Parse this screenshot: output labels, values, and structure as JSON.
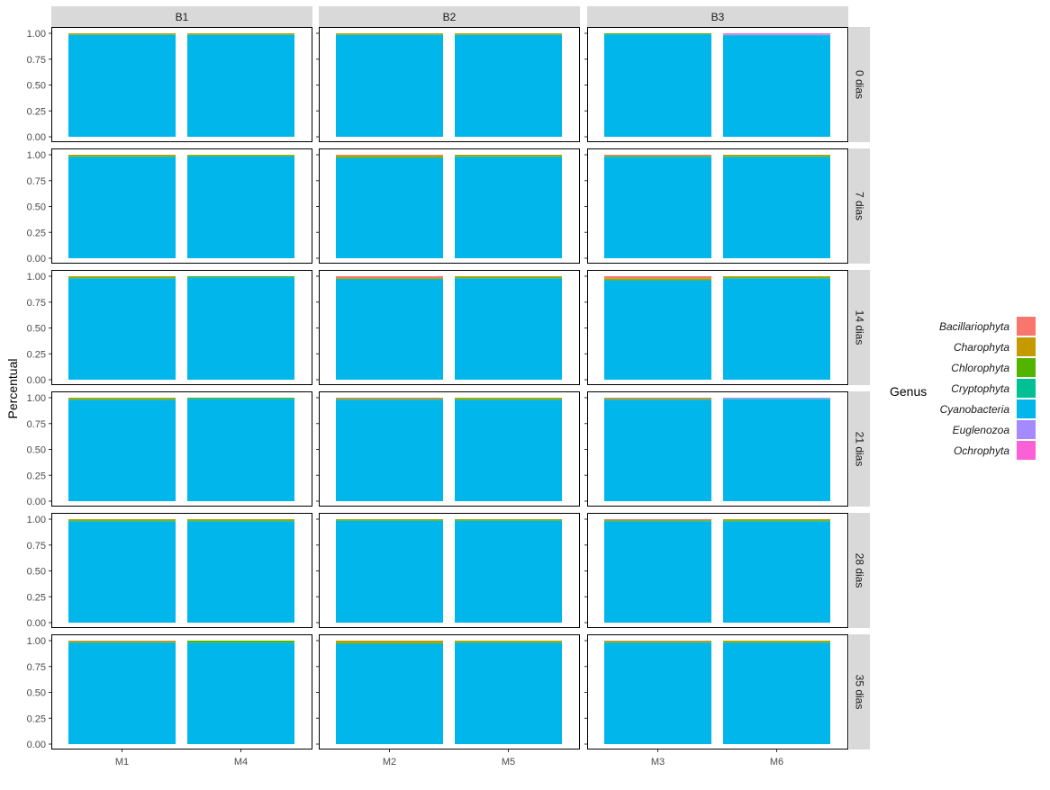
{
  "chart_data": {
    "type": "bar",
    "stacked": true,
    "ylabel": "Percentual",
    "xlabel": "",
    "ylim": [
      0,
      1
    ],
    "y_ticks": [
      0.0,
      0.25,
      0.5,
      0.75,
      1.0
    ],
    "y_tick_labels": [
      "0.00",
      "0.25",
      "0.50",
      "0.75",
      "1.00"
    ],
    "grid": false,
    "legend": {
      "title": "Genus",
      "placement": "right",
      "entries": [
        {
          "name": "Bacillariophyta",
          "color": "#F8766D"
        },
        {
          "name": "Charophyta",
          "color": "#C49A00"
        },
        {
          "name": "Chlorophyta",
          "color": "#53B400"
        },
        {
          "name": "Cryptophyta",
          "color": "#00C094"
        },
        {
          "name": "Cyanobacteria",
          "color": "#00B6EB"
        },
        {
          "name": "Euglenozoa",
          "color": "#A58AFF"
        },
        {
          "name": "Ochrophyta",
          "color": "#FB61D7"
        }
      ]
    },
    "facet_columns": [
      {
        "label": "B1",
        "categories": [
          "M1",
          "M4"
        ]
      },
      {
        "label": "B2",
        "categories": [
          "M2",
          "M5"
        ]
      },
      {
        "label": "B3",
        "categories": [
          "M3",
          "M6"
        ]
      }
    ],
    "facet_rows": [
      "0 dias",
      "7 dias",
      "14 dias",
      "21 dias",
      "28 dias",
      "35 dias"
    ],
    "bar_order": [
      "Cyanobacteria",
      "Cryptophyta",
      "Chlorophyta",
      "Charophyta",
      "Bacillariophyta",
      "Euglenozoa",
      "Ochrophyta"
    ],
    "panels": [
      {
        "row": "0 dias",
        "col": "B1",
        "bars": {
          "M1": {
            "Cyanobacteria": 0.985,
            "Charophyta": 0.01,
            "Chlorophyta": 0.005
          },
          "M4": {
            "Cyanobacteria": 0.985,
            "Charophyta": 0.01,
            "Chlorophyta": 0.005
          }
        }
      },
      {
        "row": "0 dias",
        "col": "B2",
        "bars": {
          "M2": {
            "Cyanobacteria": 0.985,
            "Charophyta": 0.01,
            "Chlorophyta": 0.005
          },
          "M5": {
            "Cyanobacteria": 0.985,
            "Charophyta": 0.01,
            "Chlorophyta": 0.005
          }
        }
      },
      {
        "row": "0 dias",
        "col": "B3",
        "bars": {
          "M3": {
            "Cyanobacteria": 0.99,
            "Chlorophyta": 0.01
          },
          "M6": {
            "Cyanobacteria": 0.98,
            "Cryptophyta": 0.005,
            "Euglenozoa": 0.005,
            "Ochrophyta": 0.01
          }
        }
      },
      {
        "row": "7 dias",
        "col": "B1",
        "bars": {
          "M1": {
            "Cyanobacteria": 0.98,
            "Chlorophyta": 0.01,
            "Charophyta": 0.01
          },
          "M4": {
            "Cyanobacteria": 0.985,
            "Chlorophyta": 0.01,
            "Charophyta": 0.005
          }
        }
      },
      {
        "row": "7 dias",
        "col": "B2",
        "bars": {
          "M2": {
            "Cyanobacteria": 0.97,
            "Chlorophyta": 0.01,
            "Charophyta": 0.015,
            "Bacillariophyta": 0.005
          },
          "M5": {
            "Cyanobacteria": 0.98,
            "Chlorophyta": 0.01,
            "Charophyta": 0.01
          }
        }
      },
      {
        "row": "7 dias",
        "col": "B3",
        "bars": {
          "M3": {
            "Cyanobacteria": 0.98,
            "Chlorophyta": 0.01,
            "Bacillariophyta": 0.01
          },
          "M6": {
            "Cyanobacteria": 0.98,
            "Chlorophyta": 0.01,
            "Charophyta": 0.01
          }
        }
      },
      {
        "row": "14 dias",
        "col": "B1",
        "bars": {
          "M1": {
            "Cyanobacteria": 0.98,
            "Chlorophyta": 0.01,
            "Charophyta": 0.01
          },
          "M4": {
            "Cyanobacteria": 0.99,
            "Chlorophyta": 0.01
          }
        }
      },
      {
        "row": "14 dias",
        "col": "B2",
        "bars": {
          "M2": {
            "Cyanobacteria": 0.97,
            "Chlorophyta": 0.01,
            "Bacillariophyta": 0.02
          },
          "M5": {
            "Cyanobacteria": 0.98,
            "Chlorophyta": 0.01,
            "Charophyta": 0.01
          }
        }
      },
      {
        "row": "14 dias",
        "col": "B3",
        "bars": {
          "M3": {
            "Cyanobacteria": 0.96,
            "Chlorophyta": 0.01,
            "Charophyta": 0.01,
            "Bacillariophyta": 0.02
          },
          "M6": {
            "Cyanobacteria": 0.98,
            "Chlorophyta": 0.01,
            "Charophyta": 0.01
          }
        }
      },
      {
        "row": "21 dias",
        "col": "B1",
        "bars": {
          "M1": {
            "Cyanobacteria": 0.98,
            "Chlorophyta": 0.01,
            "Charophyta": 0.01
          },
          "M4": {
            "Cyanobacteria": 0.99,
            "Chlorophyta": 0.01
          }
        }
      },
      {
        "row": "21 dias",
        "col": "B2",
        "bars": {
          "M2": {
            "Cyanobacteria": 0.98,
            "Chlorophyta": 0.01,
            "Bacillariophyta": 0.01
          },
          "M5": {
            "Cyanobacteria": 0.98,
            "Chlorophyta": 0.01,
            "Charophyta": 0.01
          }
        }
      },
      {
        "row": "21 dias",
        "col": "B3",
        "bars": {
          "M3": {
            "Cyanobacteria": 0.98,
            "Chlorophyta": 0.01,
            "Bacillariophyta": 0.01
          },
          "M6": {
            "Cyanobacteria": 0.985,
            "Cryptophyta": 0.005,
            "Euglenozoa": 0.01
          }
        }
      },
      {
        "row": "28 dias",
        "col": "B1",
        "bars": {
          "M1": {
            "Cyanobacteria": 0.98,
            "Chlorophyta": 0.01,
            "Charophyta": 0.01
          },
          "M4": {
            "Cyanobacteria": 0.98,
            "Chlorophyta": 0.01,
            "Charophyta": 0.01
          }
        }
      },
      {
        "row": "28 dias",
        "col": "B2",
        "bars": {
          "M2": {
            "Cyanobacteria": 0.985,
            "Chlorophyta": 0.01,
            "Charophyta": 0.005
          },
          "M5": {
            "Cyanobacteria": 0.985,
            "Chlorophyta": 0.01,
            "Charophyta": 0.005
          }
        }
      },
      {
        "row": "28 dias",
        "col": "B3",
        "bars": {
          "M3": {
            "Cyanobacteria": 0.98,
            "Chlorophyta": 0.01,
            "Bacillariophyta": 0.01
          },
          "M6": {
            "Cyanobacteria": 0.98,
            "Chlorophyta": 0.01,
            "Charophyta": 0.01
          }
        }
      },
      {
        "row": "35 dias",
        "col": "B1",
        "bars": {
          "M1": {
            "Cyanobacteria": 0.98,
            "Chlorophyta": 0.01,
            "Charophyta": 0.005,
            "Bacillariophyta": 0.005
          },
          "M4": {
            "Cyanobacteria": 0.98,
            "Chlorophyta": 0.02
          }
        }
      },
      {
        "row": "35 dias",
        "col": "B2",
        "bars": {
          "M2": {
            "Cyanobacteria": 0.97,
            "Chlorophyta": 0.01,
            "Charophyta": 0.02
          },
          "M5": {
            "Cyanobacteria": 0.98,
            "Chlorophyta": 0.01,
            "Charophyta": 0.01
          }
        }
      },
      {
        "row": "35 dias",
        "col": "B3",
        "bars": {
          "M3": {
            "Cyanobacteria": 0.98,
            "Chlorophyta": 0.01,
            "Charophyta": 0.005,
            "Bacillariophyta": 0.005
          },
          "M6": {
            "Cyanobacteria": 0.98,
            "Chlorophyta": 0.01,
            "Charophyta": 0.01
          }
        }
      }
    ]
  }
}
